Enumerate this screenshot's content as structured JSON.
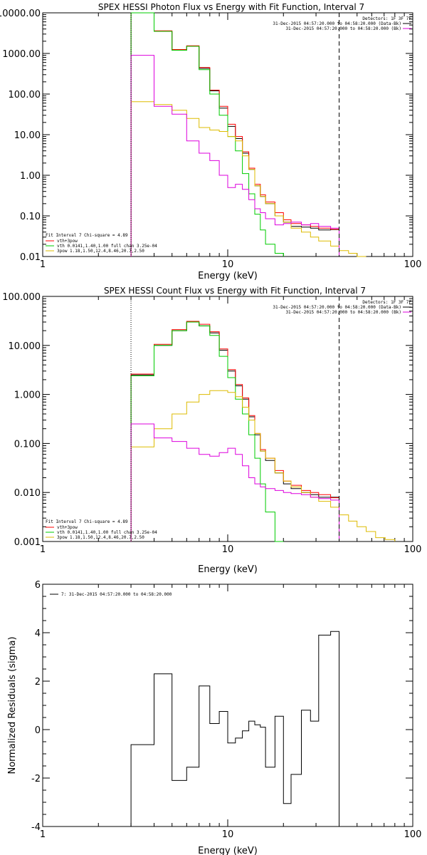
{
  "colors": {
    "data": "#000000",
    "total": "#ff0000",
    "vth": "#00cc00",
    "pow": "#ddbb00",
    "bkg": "#dd00dd"
  },
  "chart_data": [
    {
      "type": "line",
      "title": "SPEX HESSI Photon Flux vs Energy with Fit Function, Interval 7",
      "xlabel": "Energy (keV)",
      "ylabel": "",
      "xscale": "log",
      "yscale": "log",
      "xlim": [
        1,
        100
      ],
      "ylim": [
        0.01,
        10000
      ],
      "x_ticks": [
        "1",
        "10",
        "100"
      ],
      "y_ticks": [
        "0.01",
        "0.10",
        "1.00",
        "10.00",
        "100.00",
        "1000.00",
        "10000.00"
      ],
      "marker_lines": {
        "dotted": 3,
        "dashed": 40
      },
      "header": [
        "Detectors: 1F 3F 7F",
        "31-Dec-2015 04:57:20.000 to 04:58:20.000 (Data-Bk)",
        "31-Dec-2015 04:57:20.000 to 04:58:20.000 (Bk)"
      ],
      "legend": [
        "Fit Interval 7   Chi-square = 4.89",
        "vth+3pow",
        "vth 0.0141,1.40,1.00  full chan 3.25e-04",
        "3pow 1.18,1.50,12.4,8.46,20.7,2.50"
      ],
      "edges": [
        3,
        4,
        5,
        6,
        7,
        8,
        9,
        10,
        11,
        12,
        13,
        14,
        15,
        16,
        18,
        20,
        22,
        25,
        28,
        31,
        36,
        40,
        45,
        50,
        56
      ],
      "series": [
        {
          "name": "data",
          "color_key": "data",
          "values": [
            10000,
            3500,
            1200,
            1500,
            430,
            120,
            45,
            16,
            8,
            3.5,
            1.4,
            0.55,
            0.3,
            0.2,
            0.1,
            0.07,
            0.055,
            0.053,
            0.05,
            0.045,
            0.046
          ]
        },
        {
          "name": "vth+3pow",
          "color_key": "total",
          "values": [
            10000,
            3600,
            1250,
            1550,
            450,
            125,
            50,
            18,
            9,
            3.8,
            1.5,
            0.6,
            0.33,
            0.22,
            0.12,
            0.08,
            0.065,
            0.06,
            0.055,
            0.05,
            0.047
          ]
        },
        {
          "name": "vth",
          "color_key": "vth",
          "values": [
            10000,
            3500,
            1200,
            1500,
            400,
            100,
            30,
            9,
            4,
            1.1,
            0.35,
            0.11,
            0.045,
            0.02,
            0.012
          ]
        },
        {
          "name": "3pow",
          "color_key": "pow",
          "values": [
            65,
            55,
            40,
            25,
            15,
            13,
            12,
            9,
            7,
            3,
            1.4,
            0.55,
            0.3,
            0.2,
            0.1,
            0.07,
            0.05,
            0.04,
            0.03,
            0.024,
            0.018,
            0.014,
            0.012,
            0.01
          ]
        },
        {
          "name": "background",
          "color_key": "bkg",
          "values": [
            900,
            50,
            32,
            7,
            3.5,
            2.3,
            1.0,
            0.5,
            0.6,
            0.45,
            0.25,
            0.15,
            0.12,
            0.085,
            0.06,
            0.065,
            0.07,
            0.06,
            0.065,
            0.055,
            0.05
          ]
        }
      ]
    },
    {
      "type": "line",
      "title": "SPEX HESSI Count Flux vs Energy with Fit Function, Interval 7",
      "xlabel": "Energy (keV)",
      "ylabel": "",
      "xscale": "log",
      "yscale": "log",
      "xlim": [
        1,
        100
      ],
      "ylim": [
        0.001,
        100
      ],
      "x_ticks": [
        "1",
        "10",
        "100"
      ],
      "y_ticks": [
        "0.001",
        "0.010",
        "0.100",
        "1.000",
        "10.000",
        "100.000"
      ],
      "marker_lines": {
        "dotted": 3,
        "dashed": 40
      },
      "header": [
        "Detectors: 1F 3F 7F",
        "31-Dec-2015 04:57:20.000 to 04:58:20.000 (Data-Bk)",
        "31-Dec-2015 04:57:20.000 to 04:58:20.000 (Bk)"
      ],
      "legend": [
        "Fit Interval 7   Chi-square = 4.89",
        "vth+3pow",
        "vth 0.0141,1.40,1.00  full chan 3.25e-04",
        "3pow 1.18,1.50,12.4,8.46,20.7,2.50"
      ],
      "edges": [
        3,
        4,
        5,
        6,
        7,
        8,
        9,
        10,
        11,
        12,
        13,
        14,
        15,
        16,
        18,
        20,
        22,
        25,
        28,
        31,
        36,
        40,
        45,
        50,
        56,
        63,
        71,
        80
      ],
      "series": [
        {
          "name": "data",
          "color_key": "data",
          "values": [
            2.5,
            10,
            20,
            30,
            25,
            18,
            8,
            3,
            1.5,
            0.8,
            0.35,
            0.15,
            0.07,
            0.045,
            0.025,
            0.015,
            0.012,
            0.01,
            0.009,
            0.008,
            0.008
          ]
        },
        {
          "name": "vth+3pow",
          "color_key": "total",
          "values": [
            2.6,
            10.5,
            21,
            31,
            27,
            19,
            8.5,
            3.2,
            1.6,
            0.85,
            0.37,
            0.16,
            0.075,
            0.05,
            0.028,
            0.017,
            0.014,
            0.011,
            0.01,
            0.009,
            0.0078
          ]
        },
        {
          "name": "vth",
          "color_key": "vth",
          "values": [
            2.4,
            10,
            20,
            30,
            25,
            16,
            6,
            2.2,
            0.8,
            0.4,
            0.15,
            0.05,
            0.015,
            0.004,
            0.001
          ]
        },
        {
          "name": "3pow",
          "color_key": "pow",
          "values": [
            0.085,
            0.2,
            0.4,
            0.7,
            1.0,
            1.2,
            1.2,
            1.1,
            0.9,
            0.55,
            0.3,
            0.16,
            0.07,
            0.05,
            0.025,
            0.017,
            0.013,
            0.01,
            0.008,
            0.0066,
            0.005,
            0.0035,
            0.0026,
            0.002,
            0.0016,
            0.0012,
            0.0011
          ]
        },
        {
          "name": "background",
          "color_key": "bkg",
          "values": [
            0.25,
            0.13,
            0.11,
            0.08,
            0.06,
            0.055,
            0.065,
            0.08,
            0.06,
            0.035,
            0.02,
            0.015,
            0.013,
            0.012,
            0.011,
            0.01,
            0.0095,
            0.009,
            0.008,
            0.0075,
            0.007
          ]
        }
      ]
    },
    {
      "type": "line",
      "title": "",
      "xlabel": "Energy (keV)",
      "ylabel": "Normalized Residuals (sigma)",
      "xscale": "log",
      "yscale": "linear",
      "xlim": [
        1,
        100
      ],
      "ylim": [
        -4,
        6
      ],
      "x_ticks": [
        "1",
        "10",
        "100"
      ],
      "y_ticks": [
        "-4",
        "-2",
        "0",
        "2",
        "4",
        "6"
      ],
      "legend": [
        "7: 31-Dec-2015 04:57:20.000 to 04:58:20.000"
      ],
      "edges": [
        3,
        4,
        5,
        6,
        7,
        8,
        9,
        10,
        11,
        12,
        13,
        14,
        15,
        16,
        18,
        20,
        22,
        25,
        28,
        31,
        36,
        40
      ],
      "series": [
        {
          "name": "residuals",
          "color_key": "data",
          "values": [
            -0.62,
            2.3,
            -2.1,
            -1.55,
            1.8,
            0.25,
            0.75,
            -0.55,
            -0.35,
            -0.05,
            0.35,
            0.2,
            0.1,
            -1.55,
            0.55,
            -3.05,
            -1.85,
            0.8,
            0.35,
            3.9,
            4.05
          ]
        }
      ]
    }
  ]
}
